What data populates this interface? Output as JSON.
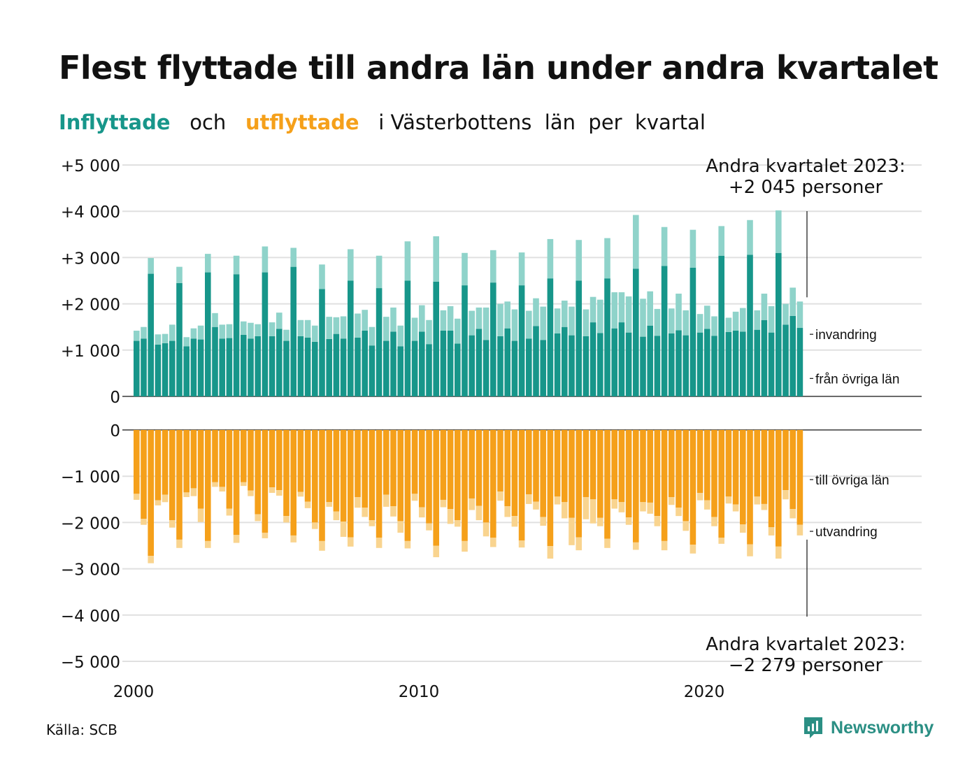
{
  "title": "Flest flyttade till andra län under andra kvartalet",
  "subtitle": {
    "inflow_word": "Inflyttade",
    "and_word": "och",
    "outflow_word": "utflyttade",
    "rest": "i Västerbottens  län  per  kvartal"
  },
  "colors": {
    "inflow_domestic": "#17968a",
    "inflow_immigration": "#8fd3ca",
    "outflow_domestic": "#f5a01a",
    "outflow_emigration": "#f9d48f",
    "grid": "#e0e0e0"
  },
  "annotations": {
    "top_line1": "Andra kvartalet 2023:",
    "top_line2": "+2 045 personer",
    "bottom_line1": "Andra kvartalet 2023:",
    "bottom_line2": "−2 279 personer"
  },
  "source": "Källa: SCB",
  "brand": "Newsworthy",
  "chart_data": [
    {
      "type": "bar",
      "stacked": true,
      "x_unit": "quarter",
      "x_start": "2000 Q1",
      "x_end": "2023 Q2",
      "x_ticks": [
        "2000",
        "2010",
        "2020"
      ],
      "y_ticks": [
        "+5 000",
        "+4 000",
        "+3 000",
        "+2 000",
        "+1 000",
        "0"
      ],
      "ylim": [
        0,
        5000
      ],
      "grid": true,
      "series": [
        {
          "name": "från övriga län",
          "values": [
            1200,
            1250,
            2650,
            1120,
            1150,
            1200,
            2450,
            1080,
            1250,
            1230,
            2680,
            1500,
            1250,
            1260,
            2640,
            1330,
            1250,
            1300,
            2680,
            1300,
            1460,
            1200,
            2800,
            1300,
            1270,
            1180,
            2320,
            1240,
            1350,
            1250,
            2500,
            1270,
            1420,
            1100,
            2340,
            1200,
            1400,
            1080,
            2500,
            1200,
            1400,
            1130,
            2480,
            1420,
            1420,
            1140,
            2400,
            1320,
            1460,
            1220,
            2460,
            1300,
            1470,
            1200,
            2400,
            1250,
            1520,
            1220,
            2550,
            1360,
            1500,
            1320,
            2500,
            1300,
            1600,
            1370,
            2550,
            1470,
            1600,
            1380,
            2760,
            1290,
            1530,
            1310,
            2820,
            1360,
            1430,
            1320,
            2780,
            1380,
            1460,
            1310,
            3040,
            1390,
            1420,
            1400,
            3060,
            1440,
            1650,
            1380,
            3100,
            1550,
            1740,
            1480
          ]
        },
        {
          "name": "invandring",
          "values": [
            220,
            250,
            340,
            220,
            200,
            350,
            350,
            200,
            220,
            300,
            400,
            300,
            300,
            300,
            400,
            290,
            340,
            260,
            560,
            300,
            350,
            240,
            410,
            350,
            380,
            350,
            530,
            480,
            360,
            480,
            680,
            520,
            450,
            400,
            700,
            520,
            520,
            450,
            850,
            500,
            570,
            520,
            980,
            440,
            530,
            540,
            700,
            530,
            460,
            700,
            700,
            700,
            580,
            680,
            710,
            600,
            600,
            720,
            850,
            540,
            570,
            620,
            880,
            580,
            550,
            720,
            870,
            780,
            650,
            780,
            1160,
            820,
            740,
            580,
            840,
            540,
            790,
            540,
            820,
            400,
            500,
            420,
            640,
            310,
            410,
            510,
            750,
            420,
            570,
            570,
            920,
            450,
            610,
            570
          ]
        }
      ]
    },
    {
      "type": "bar",
      "stacked": true,
      "x_unit": "quarter",
      "x_start": "2000 Q1",
      "x_end": "2023 Q2",
      "x_ticks": [
        "2000",
        "2010",
        "2020"
      ],
      "y_ticks": [
        "0",
        "−1 000",
        "−2 000",
        "−3 000",
        "−4 000",
        "−5 000"
      ],
      "ylim": [
        -5000,
        0
      ],
      "grid": true,
      "series": [
        {
          "name": "till övriga län",
          "values": [
            -1380,
            -1920,
            -2720,
            -1520,
            -1400,
            -1950,
            -2370,
            -1350,
            -1260,
            -1700,
            -2400,
            -1130,
            -1230,
            -1700,
            -2270,
            -1130,
            -1310,
            -1820,
            -2220,
            -1240,
            -1300,
            -1860,
            -2280,
            -1340,
            -1550,
            -2000,
            -2400,
            -1560,
            -1760,
            -1980,
            -2320,
            -1450,
            -1680,
            -1950,
            -2330,
            -1400,
            -1650,
            -1970,
            -2400,
            -1380,
            -1670,
            -2020,
            -2500,
            -1510,
            -1710,
            -1950,
            -2400,
            -1480,
            -1640,
            -2000,
            -2330,
            -1330,
            -1650,
            -1860,
            -2390,
            -1390,
            -1550,
            -1880,
            -2510,
            -1440,
            -1560,
            -1900,
            -2320,
            -1450,
            -1500,
            -1900,
            -2350,
            -1500,
            -1560,
            -1890,
            -2430,
            -1560,
            -1570,
            -1860,
            -2400,
            -1450,
            -1680,
            -1970,
            -2480,
            -1360,
            -1520,
            -1880,
            -2330,
            -1440,
            -1610,
            -2040,
            -2470,
            -1440,
            -1600,
            -2100,
            -2520,
            -1300,
            -1710,
            -2050
          ]
        },
        {
          "name": "utvandring",
          "values": [
            -130,
            -130,
            -160,
            -110,
            -160,
            -160,
            -180,
            -100,
            -170,
            -290,
            -150,
            -100,
            -100,
            -150,
            -170,
            -80,
            -120,
            -150,
            -120,
            -120,
            -120,
            -140,
            -150,
            -100,
            -140,
            -140,
            -210,
            -100,
            -190,
            -330,
            -200,
            -230,
            -200,
            -130,
            -220,
            -260,
            -220,
            -250,
            -160,
            -150,
            -220,
            -150,
            -250,
            -160,
            -320,
            -140,
            -230,
            -250,
            -310,
            -300,
            -200,
            -200,
            -230,
            -230,
            -150,
            -210,
            -170,
            -190,
            -270,
            -170,
            -350,
            -590,
            -280,
            -480,
            -520,
            -180,
            -200,
            -200,
            -220,
            -160,
            -160,
            -200,
            -240,
            -220,
            -200,
            -170,
            -180,
            -210,
            -190,
            -160,
            -200,
            -200,
            -130,
            -150,
            -150,
            -180,
            -260,
            -170,
            -130,
            -180,
            -260,
            -200,
            -200,
            -229
          ]
        }
      ]
    }
  ]
}
